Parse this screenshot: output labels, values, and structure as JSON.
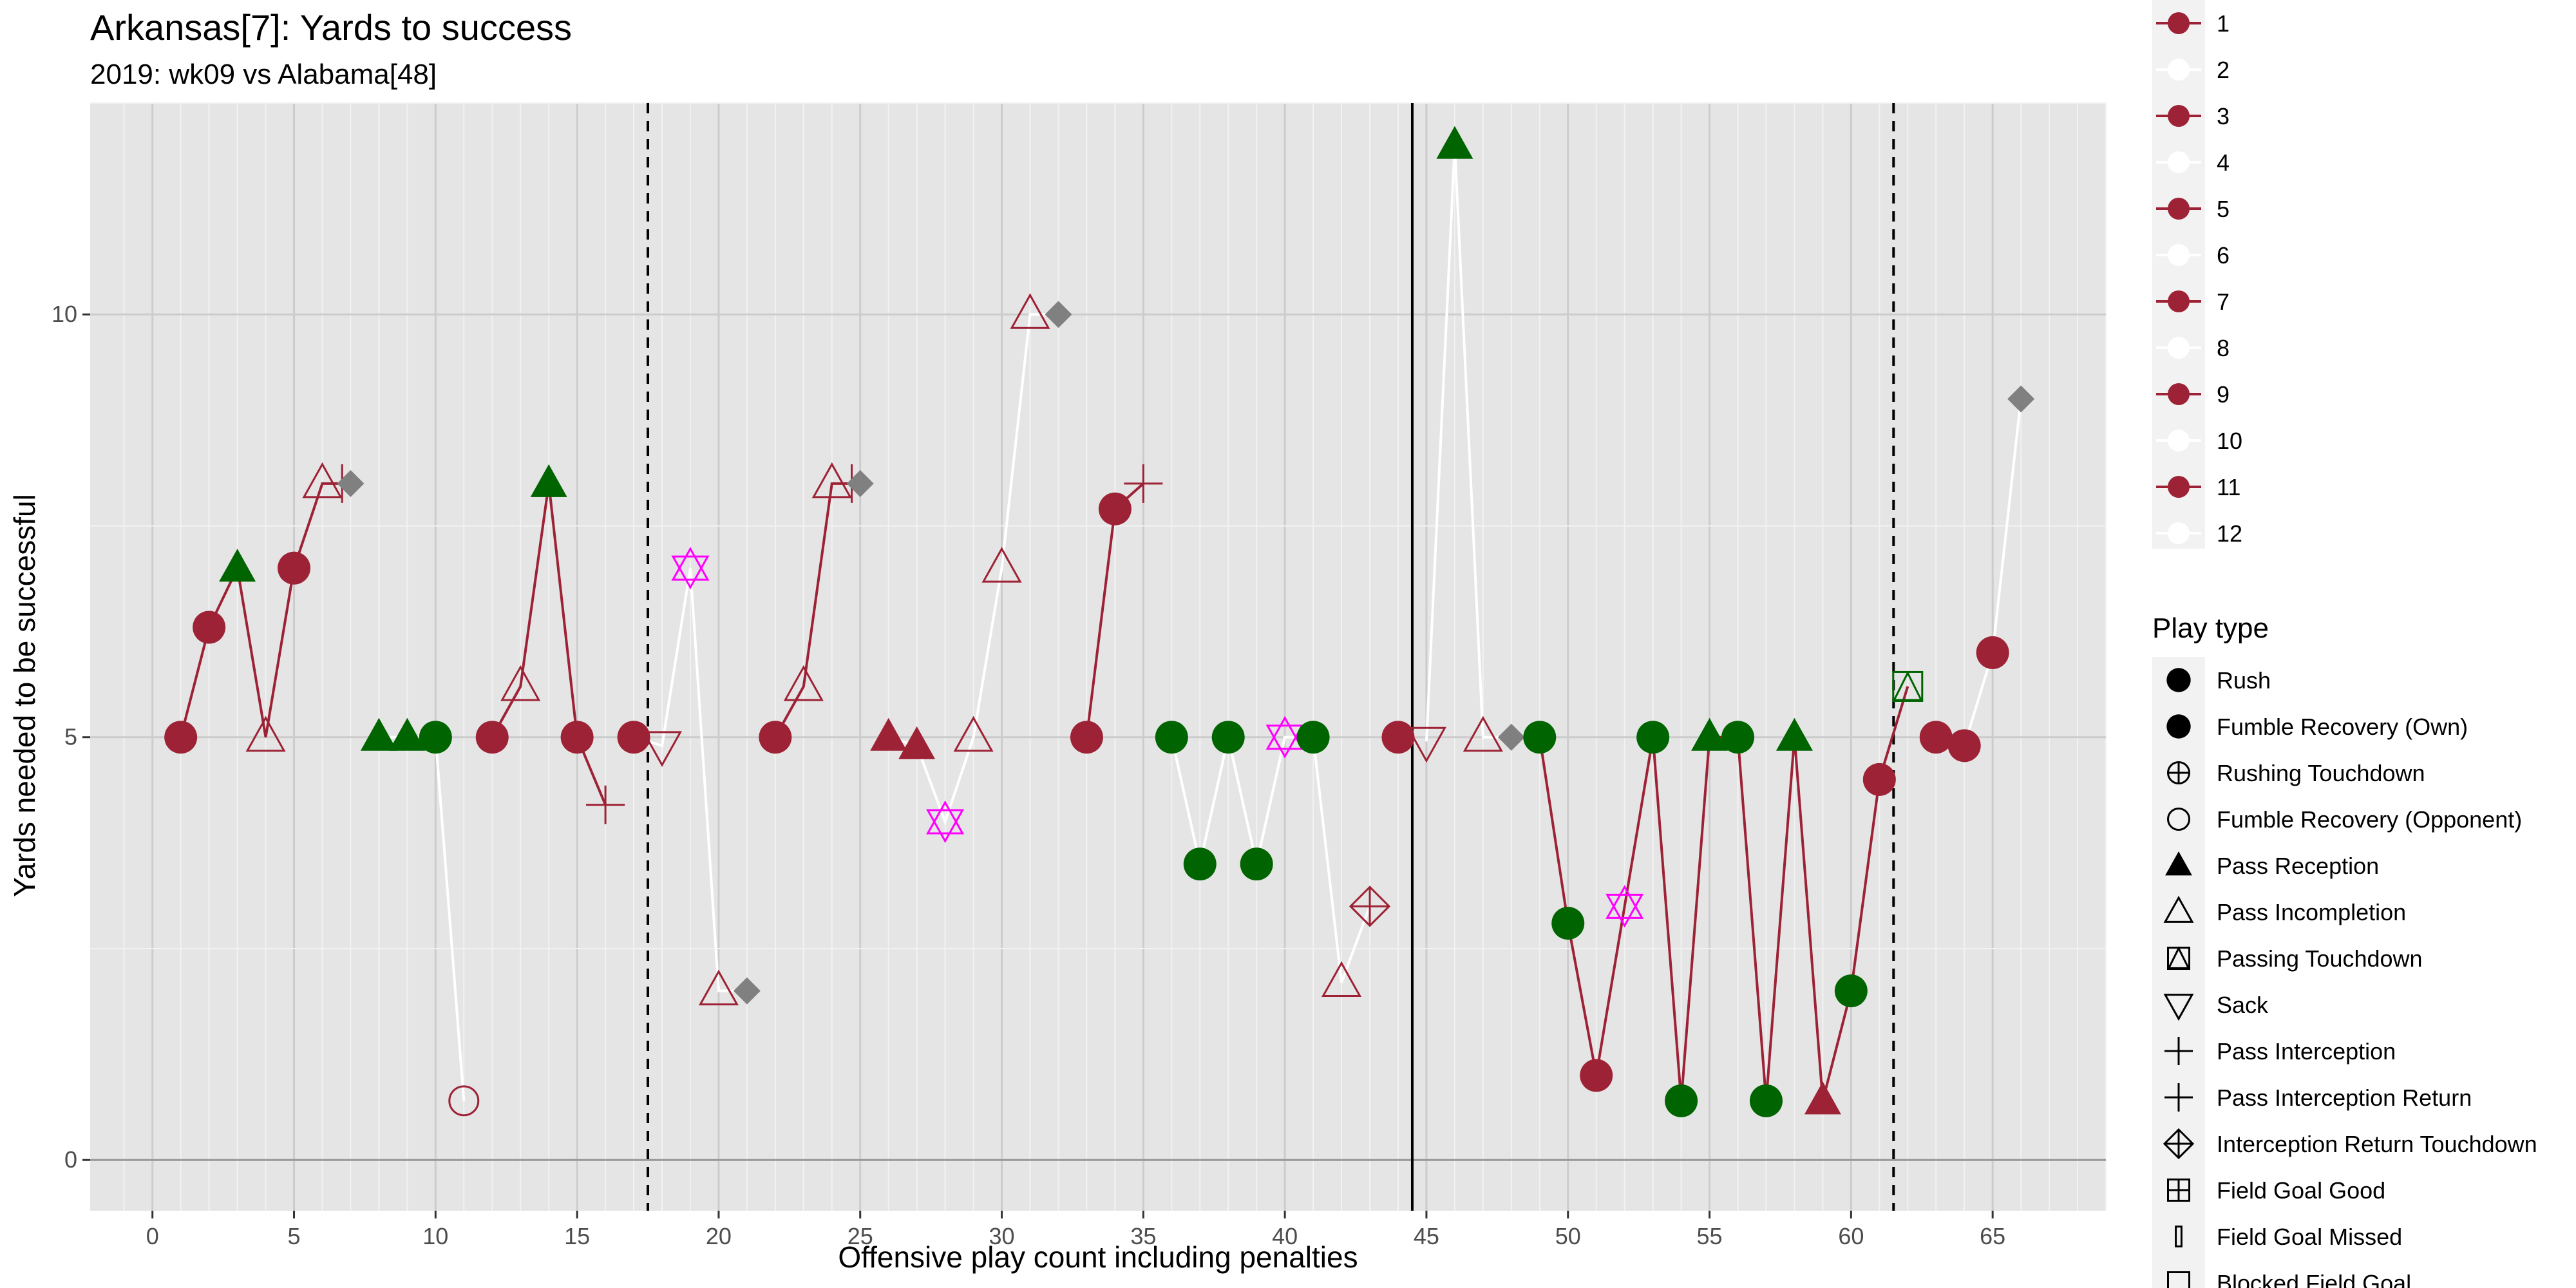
{
  "chart_data": {
    "type": "scatter",
    "title": "Arkansas[7]: Yards to success",
    "subtitle": "2019: wk09 vs Alabama[48]",
    "xlabel": "Offensive play count including penalties",
    "ylabel": "Yards needed to be successful",
    "xlim": [
      -2.2,
      69
    ],
    "ylim": [
      -0.6,
      12.5
    ],
    "x_ticks": [
      0,
      5,
      10,
      15,
      20,
      25,
      30,
      35,
      40,
      45,
      50,
      55,
      60,
      65
    ],
    "y_ticks": [
      0,
      5,
      10
    ],
    "grid": true,
    "vlines": [
      {
        "x": 17.5,
        "style": "dashed"
      },
      {
        "x": 44.5,
        "style": "solid"
      },
      {
        "x": 61.5,
        "style": "dashed"
      }
    ],
    "colors": {
      "arkansas": "#9d2235",
      "alabama_line": "#ffffff",
      "success": "#006400",
      "penalty": "#808080",
      "sack_touch": "#ff00ff",
      "panel": "#e5e5e5",
      "grid_major": "#cccccc",
      "grid_minor": "#f2f2f2"
    },
    "points": [
      {
        "x": 1,
        "y": 5,
        "shape": "rush",
        "color": "arkansas",
        "drive": 1
      },
      {
        "x": 2,
        "y": 6.3,
        "shape": "rush",
        "color": "arkansas",
        "drive": 1
      },
      {
        "x": 3,
        "y": 7,
        "shape": "pass-reception",
        "color": "success",
        "drive": 1
      },
      {
        "x": 4,
        "y": 5,
        "shape": "pass-incompletion",
        "color": "arkansas",
        "drive": 1
      },
      {
        "x": 5,
        "y": 7,
        "shape": "rush",
        "color": "arkansas",
        "drive": 1
      },
      {
        "x": 6,
        "y": 8,
        "shape": "pass-incompletion",
        "color": "arkansas",
        "drive": 1
      },
      {
        "x": 6.7,
        "y": 8,
        "shape": "pass-interception",
        "color": "arkansas",
        "drive": 1
      },
      {
        "x": 7,
        "y": 8,
        "shape": "penalty",
        "color": "penalty",
        "drive": 1
      },
      {
        "x": 8,
        "y": 5,
        "shape": "pass-reception",
        "color": "success",
        "drive": 2
      },
      {
        "x": 9,
        "y": 5,
        "shape": "pass-reception",
        "color": "success",
        "drive": 2
      },
      {
        "x": 10,
        "y": 5,
        "shape": "rush",
        "color": "success",
        "drive": 2
      },
      {
        "x": 11,
        "y": 0.7,
        "shape": "fumble-opp",
        "color": "arkansas",
        "drive": 2
      },
      {
        "x": 12,
        "y": 5,
        "shape": "rush",
        "color": "arkansas",
        "drive": 3
      },
      {
        "x": 13,
        "y": 5.6,
        "shape": "pass-incompletion",
        "color": "arkansas",
        "drive": 3
      },
      {
        "x": 14,
        "y": 8,
        "shape": "pass-reception",
        "color": "success",
        "drive": 3
      },
      {
        "x": 15,
        "y": 5,
        "shape": "rush",
        "color": "arkansas",
        "drive": 3
      },
      {
        "x": 16,
        "y": 4.2,
        "shape": "pass-interception",
        "color": "arkansas",
        "drive": 3
      },
      {
        "x": 17,
        "y": 5,
        "shape": "rush",
        "color": "arkansas",
        "drive": 4
      },
      {
        "x": 18,
        "y": 4.9,
        "shape": "sack",
        "color": "arkansas",
        "drive": 4
      },
      {
        "x": 19,
        "y": 7,
        "shape": "star",
        "color": "sack_touch",
        "drive": 4
      },
      {
        "x": 20,
        "y": 2,
        "shape": "pass-incompletion",
        "color": "arkansas",
        "drive": 4
      },
      {
        "x": 21,
        "y": 2,
        "shape": "penalty",
        "color": "penalty",
        "drive": 4
      },
      {
        "x": 22,
        "y": 5,
        "shape": "rush",
        "color": "arkansas",
        "drive": 5
      },
      {
        "x": 23,
        "y": 5.6,
        "shape": "pass-incompletion",
        "color": "arkansas",
        "drive": 5
      },
      {
        "x": 24,
        "y": 8,
        "shape": "pass-incompletion",
        "color": "arkansas",
        "drive": 5
      },
      {
        "x": 24.7,
        "y": 8,
        "shape": "pass-interception",
        "color": "arkansas",
        "drive": 5
      },
      {
        "x": 25,
        "y": 8,
        "shape": "penalty",
        "color": "penalty",
        "drive": 5
      },
      {
        "x": 26,
        "y": 5,
        "shape": "pass-reception",
        "color": "arkansas",
        "drive": 6
      },
      {
        "x": 27,
        "y": 4.9,
        "shape": "pass-reception",
        "color": "arkansas",
        "drive": 6
      },
      {
        "x": 28,
        "y": 4,
        "shape": "star",
        "color": "sack_touch",
        "drive": 6
      },
      {
        "x": 29,
        "y": 5,
        "shape": "pass-incompletion",
        "color": "arkansas",
        "drive": 6
      },
      {
        "x": 30,
        "y": 7,
        "shape": "pass-incompletion",
        "color": "arkansas",
        "drive": 6
      },
      {
        "x": 31,
        "y": 10,
        "shape": "pass-incompletion",
        "color": "arkansas",
        "drive": 6
      },
      {
        "x": 32,
        "y": 10,
        "shape": "penalty",
        "color": "penalty",
        "drive": 6
      },
      {
        "x": 33,
        "y": 5,
        "shape": "rush",
        "color": "arkansas",
        "drive": 7
      },
      {
        "x": 34,
        "y": 7.7,
        "shape": "rush",
        "color": "arkansas",
        "drive": 7
      },
      {
        "x": 35,
        "y": 8,
        "shape": "pass-interception",
        "color": "arkansas",
        "drive": 7
      },
      {
        "x": 36,
        "y": 5,
        "shape": "rush",
        "color": "success",
        "drive": 8
      },
      {
        "x": 37,
        "y": 3.5,
        "shape": "rush",
        "color": "success",
        "drive": 8
      },
      {
        "x": 38,
        "y": 5,
        "shape": "rush",
        "color": "success",
        "drive": 8
      },
      {
        "x": 39,
        "y": 3.5,
        "shape": "rush",
        "color": "success",
        "drive": 8
      },
      {
        "x": 40,
        "y": 5,
        "shape": "star",
        "color": "sack_touch",
        "drive": 8
      },
      {
        "x": 41,
        "y": 5,
        "shape": "rush",
        "color": "success",
        "drive": 8
      },
      {
        "x": 42,
        "y": 2.1,
        "shape": "pass-incompletion",
        "color": "arkansas",
        "drive": 8
      },
      {
        "x": 43,
        "y": 3,
        "shape": "int-return-td",
        "color": "arkansas",
        "drive": 8
      },
      {
        "x": 44,
        "y": 5,
        "shape": "rush",
        "color": "arkansas",
        "drive": 9
      },
      {
        "x": 45,
        "y": 4.95,
        "shape": "sack",
        "color": "arkansas",
        "drive": 10
      },
      {
        "x": 46,
        "y": 12,
        "shape": "pass-reception",
        "color": "success",
        "drive": 10
      },
      {
        "x": 47,
        "y": 5,
        "shape": "pass-incompletion",
        "color": "arkansas",
        "drive": 10
      },
      {
        "x": 48,
        "y": 5,
        "shape": "penalty",
        "color": "penalty",
        "drive": 10
      },
      {
        "x": 49,
        "y": 5,
        "shape": "rush",
        "color": "success",
        "drive": 11
      },
      {
        "x": 50,
        "y": 2.8,
        "shape": "rush",
        "color": "success",
        "drive": 11
      },
      {
        "x": 51,
        "y": 1,
        "shape": "rush",
        "color": "arkansas",
        "drive": 11
      },
      {
        "x": 52,
        "y": 3,
        "shape": "star",
        "color": "sack_touch",
        "drive": 11
      },
      {
        "x": 53,
        "y": 5,
        "shape": "rush",
        "color": "success",
        "drive": 11
      },
      {
        "x": 54,
        "y": 0.7,
        "shape": "rush",
        "color": "success",
        "drive": 11
      },
      {
        "x": 55,
        "y": 5,
        "shape": "pass-reception",
        "color": "success",
        "drive": 11
      },
      {
        "x": 56,
        "y": 5,
        "shape": "rush",
        "color": "success",
        "drive": 11
      },
      {
        "x": 57,
        "y": 0.7,
        "shape": "rush",
        "color": "success",
        "drive": 11
      },
      {
        "x": 58,
        "y": 5,
        "shape": "pass-reception",
        "color": "success",
        "drive": 11
      },
      {
        "x": 59,
        "y": 0.7,
        "shape": "pass-reception",
        "color": "arkansas",
        "drive": 11
      },
      {
        "x": 60,
        "y": 2,
        "shape": "rush",
        "color": "success",
        "drive": 11
      },
      {
        "x": 61,
        "y": 4.5,
        "shape": "rush",
        "color": "arkansas",
        "drive": 11
      },
      {
        "x": 62,
        "y": 5.6,
        "shape": "passing-td",
        "color": "success",
        "drive": 11
      },
      {
        "x": 63,
        "y": 5,
        "shape": "rush",
        "color": "arkansas",
        "drive": 12
      },
      {
        "x": 64,
        "y": 4.9,
        "shape": "rush",
        "color": "arkansas",
        "drive": 12
      },
      {
        "x": 65,
        "y": 6,
        "shape": "rush",
        "color": "arkansas",
        "drive": 12
      },
      {
        "x": 66,
        "y": 9,
        "shape": "penalty",
        "color": "penalty",
        "drive": 12
      }
    ],
    "legend_drive": [
      "1",
      "2",
      "3",
      "4",
      "5",
      "6",
      "7",
      "8",
      "9",
      "10",
      "11",
      "12"
    ],
    "legend_play_title": "Play type",
    "legend_play": [
      {
        "label": "Rush",
        "shape": "rush"
      },
      {
        "label": "Fumble Recovery (Own)",
        "shape": "rush"
      },
      {
        "label": "Rushing Touchdown",
        "shape": "circle-plus"
      },
      {
        "label": "Fumble Recovery (Opponent)",
        "shape": "fumble-opp"
      },
      {
        "label": "Pass Reception",
        "shape": "pass-reception"
      },
      {
        "label": "Pass Incompletion",
        "shape": "pass-incompletion"
      },
      {
        "label": "Passing Touchdown",
        "shape": "passing-td"
      },
      {
        "label": "Sack",
        "shape": "sack"
      },
      {
        "label": "Pass Interception",
        "shape": "pass-interception"
      },
      {
        "label": "Pass Interception Return",
        "shape": "pass-interception"
      },
      {
        "label": "Interception Return Touchdown",
        "shape": "int-return-td"
      },
      {
        "label": "Field Goal Good",
        "shape": "square-plus"
      },
      {
        "label": "Field Goal Missed",
        "shape": "thin-rect"
      },
      {
        "label": "Blocked Field Goal",
        "shape": "open-square"
      }
    ]
  }
}
